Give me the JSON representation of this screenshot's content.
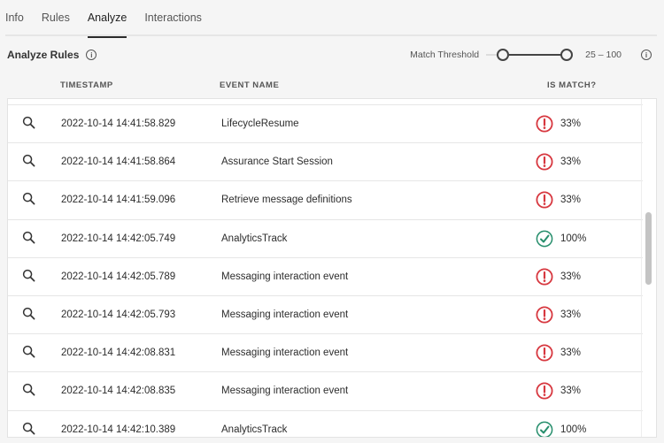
{
  "tabs": [
    {
      "label": "Info"
    },
    {
      "label": "Rules"
    },
    {
      "label": "Analyze",
      "active": true
    },
    {
      "label": "Interactions"
    }
  ],
  "section": {
    "title": "Analyze Rules",
    "threshold_label": "Match Threshold",
    "threshold_min": 25,
    "threshold_max": 100,
    "threshold_text": "25 – 100"
  },
  "columns": {
    "timestamp": "TIMESTAMP",
    "event_name": "EVENT NAME",
    "is_match": "IS MATCH?"
  },
  "colors": {
    "fail": "#d7373f",
    "pass": "#268e6c"
  },
  "rows": [
    {
      "timestamp": "2022-10-14 14:41:58.829",
      "event": "LifecycleResume",
      "match": false,
      "percent": "33%"
    },
    {
      "timestamp": "2022-10-14 14:41:58.864",
      "event": "Assurance Start Session",
      "match": false,
      "percent": "33%"
    },
    {
      "timestamp": "2022-10-14 14:41:59.096",
      "event": "Retrieve message definitions",
      "match": false,
      "percent": "33%"
    },
    {
      "timestamp": "2022-10-14 14:42:05.749",
      "event": "AnalyticsTrack",
      "match": true,
      "percent": "100%"
    },
    {
      "timestamp": "2022-10-14 14:42:05.789",
      "event": "Messaging interaction event",
      "match": false,
      "percent": "33%"
    },
    {
      "timestamp": "2022-10-14 14:42:05.793",
      "event": "Messaging interaction event",
      "match": false,
      "percent": "33%"
    },
    {
      "timestamp": "2022-10-14 14:42:08.831",
      "event": "Messaging interaction event",
      "match": false,
      "percent": "33%"
    },
    {
      "timestamp": "2022-10-14 14:42:08.835",
      "event": "Messaging interaction event",
      "match": false,
      "percent": "33%"
    },
    {
      "timestamp": "2022-10-14 14:42:10.389",
      "event": "AnalyticsTrack",
      "match": true,
      "percent": "100%"
    }
  ]
}
